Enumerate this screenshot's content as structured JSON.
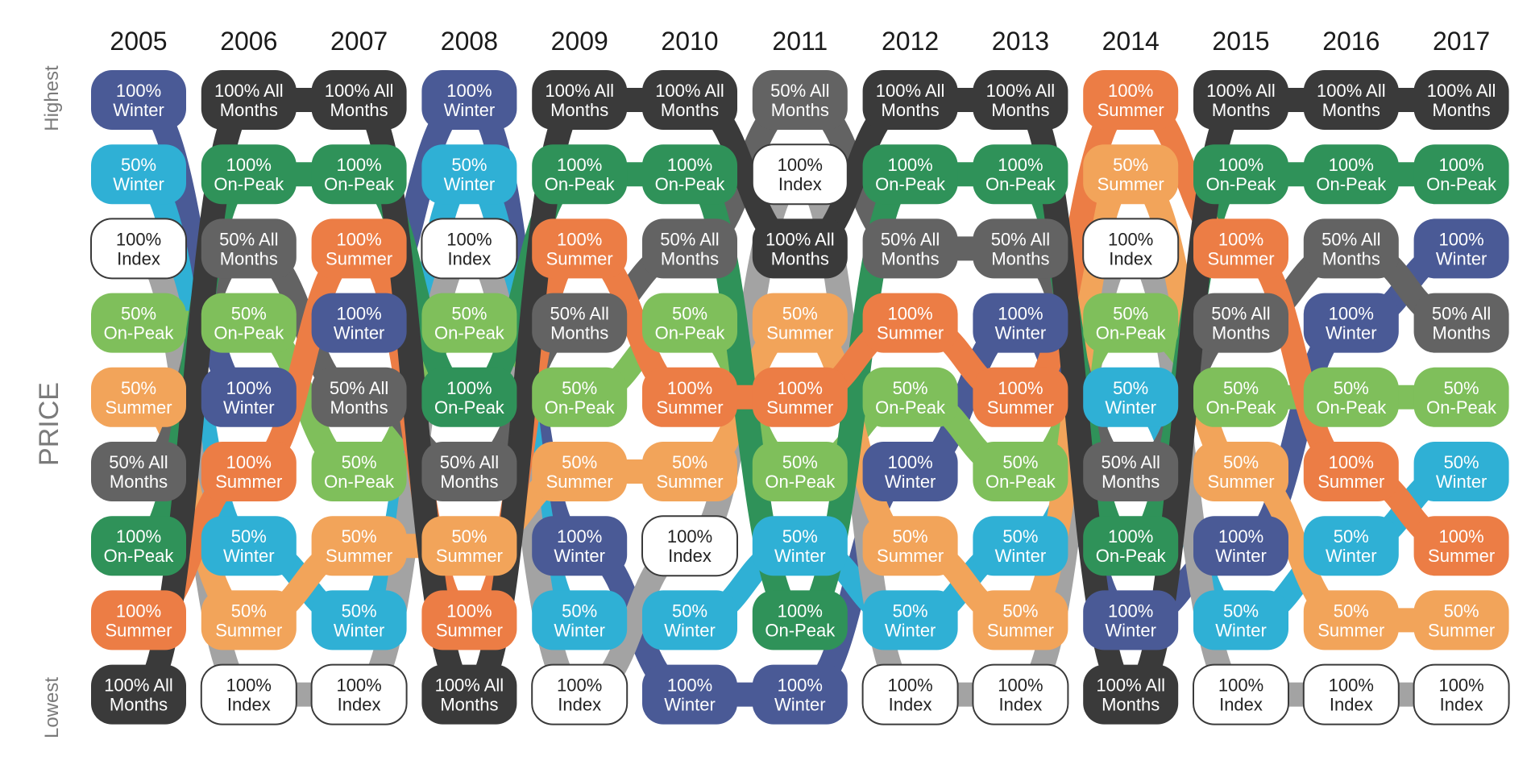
{
  "chart_data": {
    "type": "bump",
    "title": "",
    "ylabel": "PRICE",
    "y_top_label": "Highest",
    "y_bottom_label": "Lowest",
    "x": [
      "2005",
      "2006",
      "2007",
      "2008",
      "2009",
      "2010",
      "2011",
      "2012",
      "2013",
      "2014",
      "2015",
      "2016",
      "2017"
    ],
    "series": [
      {
        "id": "w100",
        "lines": [
          "100%",
          "Winter"
        ],
        "color": "#4a5a96",
        "text_color": "#ffffff",
        "ranks": [
          1,
          5,
          4,
          1,
          7,
          9,
          9,
          6,
          4,
          8,
          7,
          4,
          3
        ]
      },
      {
        "id": "w50",
        "lines": [
          "50%",
          "Winter"
        ],
        "color": "#2fb0d5",
        "text_color": "#ffffff",
        "ranks": [
          2,
          7,
          8,
          2,
          8,
          8,
          7,
          8,
          7,
          5,
          8,
          7,
          6
        ]
      },
      {
        "id": "idx",
        "lines": [
          "100%",
          "Index"
        ],
        "color": "#ffffff",
        "text_color": "#222222",
        "stroke": "#3a3a3a",
        "link_color": "#a3a3a3",
        "ranks": [
          3,
          9,
          9,
          3,
          9,
          7,
          2,
          9,
          9,
          3,
          9,
          9,
          9
        ]
      },
      {
        "id": "op50",
        "lines": [
          "50%",
          "On-Peak"
        ],
        "color": "#7fbf5b",
        "text_color": "#ffffff",
        "ranks": [
          4,
          4,
          6,
          4,
          5,
          4,
          6,
          5,
          6,
          4,
          5,
          5,
          5
        ]
      },
      {
        "id": "s50",
        "lines": [
          "50%",
          "Summer"
        ],
        "color": "#f2a45a",
        "text_color": "#ffffff",
        "ranks": [
          5,
          8,
          7,
          7,
          6,
          6,
          4,
          7,
          8,
          2,
          6,
          8,
          8
        ]
      },
      {
        "id": "am50",
        "lines": [
          "50% All",
          "Months"
        ],
        "color": "#636363",
        "text_color": "#ffffff",
        "ranks": [
          6,
          3,
          5,
          6,
          4,
          3,
          1,
          3,
          3,
          6,
          4,
          3,
          4
        ]
      },
      {
        "id": "op100",
        "lines": [
          "100%",
          "On-Peak"
        ],
        "color": "#2f9259",
        "text_color": "#ffffff",
        "ranks": [
          7,
          2,
          2,
          5,
          2,
          2,
          8,
          2,
          2,
          7,
          2,
          2,
          2
        ]
      },
      {
        "id": "s100",
        "lines": [
          "100%",
          "Summer"
        ],
        "color": "#ec7d45",
        "text_color": "#ffffff",
        "ranks": [
          8,
          6,
          3,
          8,
          3,
          5,
          5,
          4,
          5,
          1,
          3,
          6,
          7
        ]
      },
      {
        "id": "am100",
        "lines": [
          "100% All",
          "Months"
        ],
        "color": "#3a3a3a",
        "text_color": "#ffffff",
        "ranks": [
          9,
          1,
          1,
          9,
          1,
          1,
          3,
          1,
          1,
          9,
          1,
          1,
          1
        ]
      }
    ]
  }
}
